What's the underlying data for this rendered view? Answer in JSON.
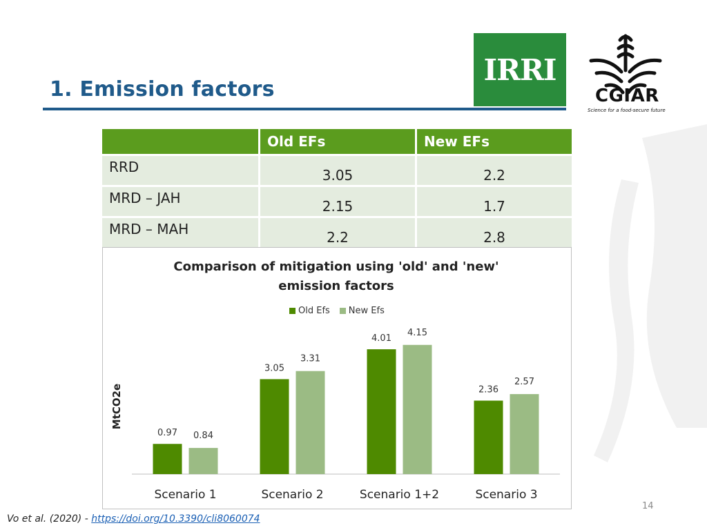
{
  "slide": {
    "title": "1. Emission factors",
    "page_number": "14",
    "citation_text": "Vo et al. (2020) - ",
    "citation_link": "https://doi.org/10.3390/cli8060074"
  },
  "logos": {
    "irri": "IRRI",
    "cgiar": "CGIAR",
    "cgiar_tagline": "Science for a food-secure future"
  },
  "table": {
    "headers": [
      "",
      "Old EFs",
      "New EFs"
    ],
    "rows": [
      {
        "label": "RRD",
        "old": "3.05",
        "new": "2.2"
      },
      {
        "label": "MRD – JAH",
        "old": "2.15",
        "new": "1.7"
      },
      {
        "label": "MRD – MAH",
        "old": "2.2",
        "new": "2.8"
      }
    ]
  },
  "colors": {
    "title_blue": "#1f5a8a",
    "header_green": "#5b9c1e",
    "cell_bg": "#e4ecdf",
    "old_series": "#4e8a00",
    "new_series": "#9bbb84",
    "irri_green": "#2a8c3c"
  },
  "chart_data": {
    "type": "bar",
    "title": "Comparison of mitigation using 'old' and 'new' emission factors",
    "xlabel": "",
    "ylabel": "MtCO2e",
    "categories": [
      "Scenario 1",
      "Scenario 2",
      "Scenario 1+2",
      "Scenario 3"
    ],
    "series": [
      {
        "name": "Old Efs",
        "values": [
          0.97,
          3.05,
          4.01,
          2.36
        ]
      },
      {
        "name": "New Efs",
        "values": [
          0.84,
          3.31,
          4.15,
          2.57
        ]
      }
    ],
    "ylim": [
      0,
      4.5
    ],
    "grid": false,
    "legend_position": "top-center",
    "data_labels": true
  }
}
